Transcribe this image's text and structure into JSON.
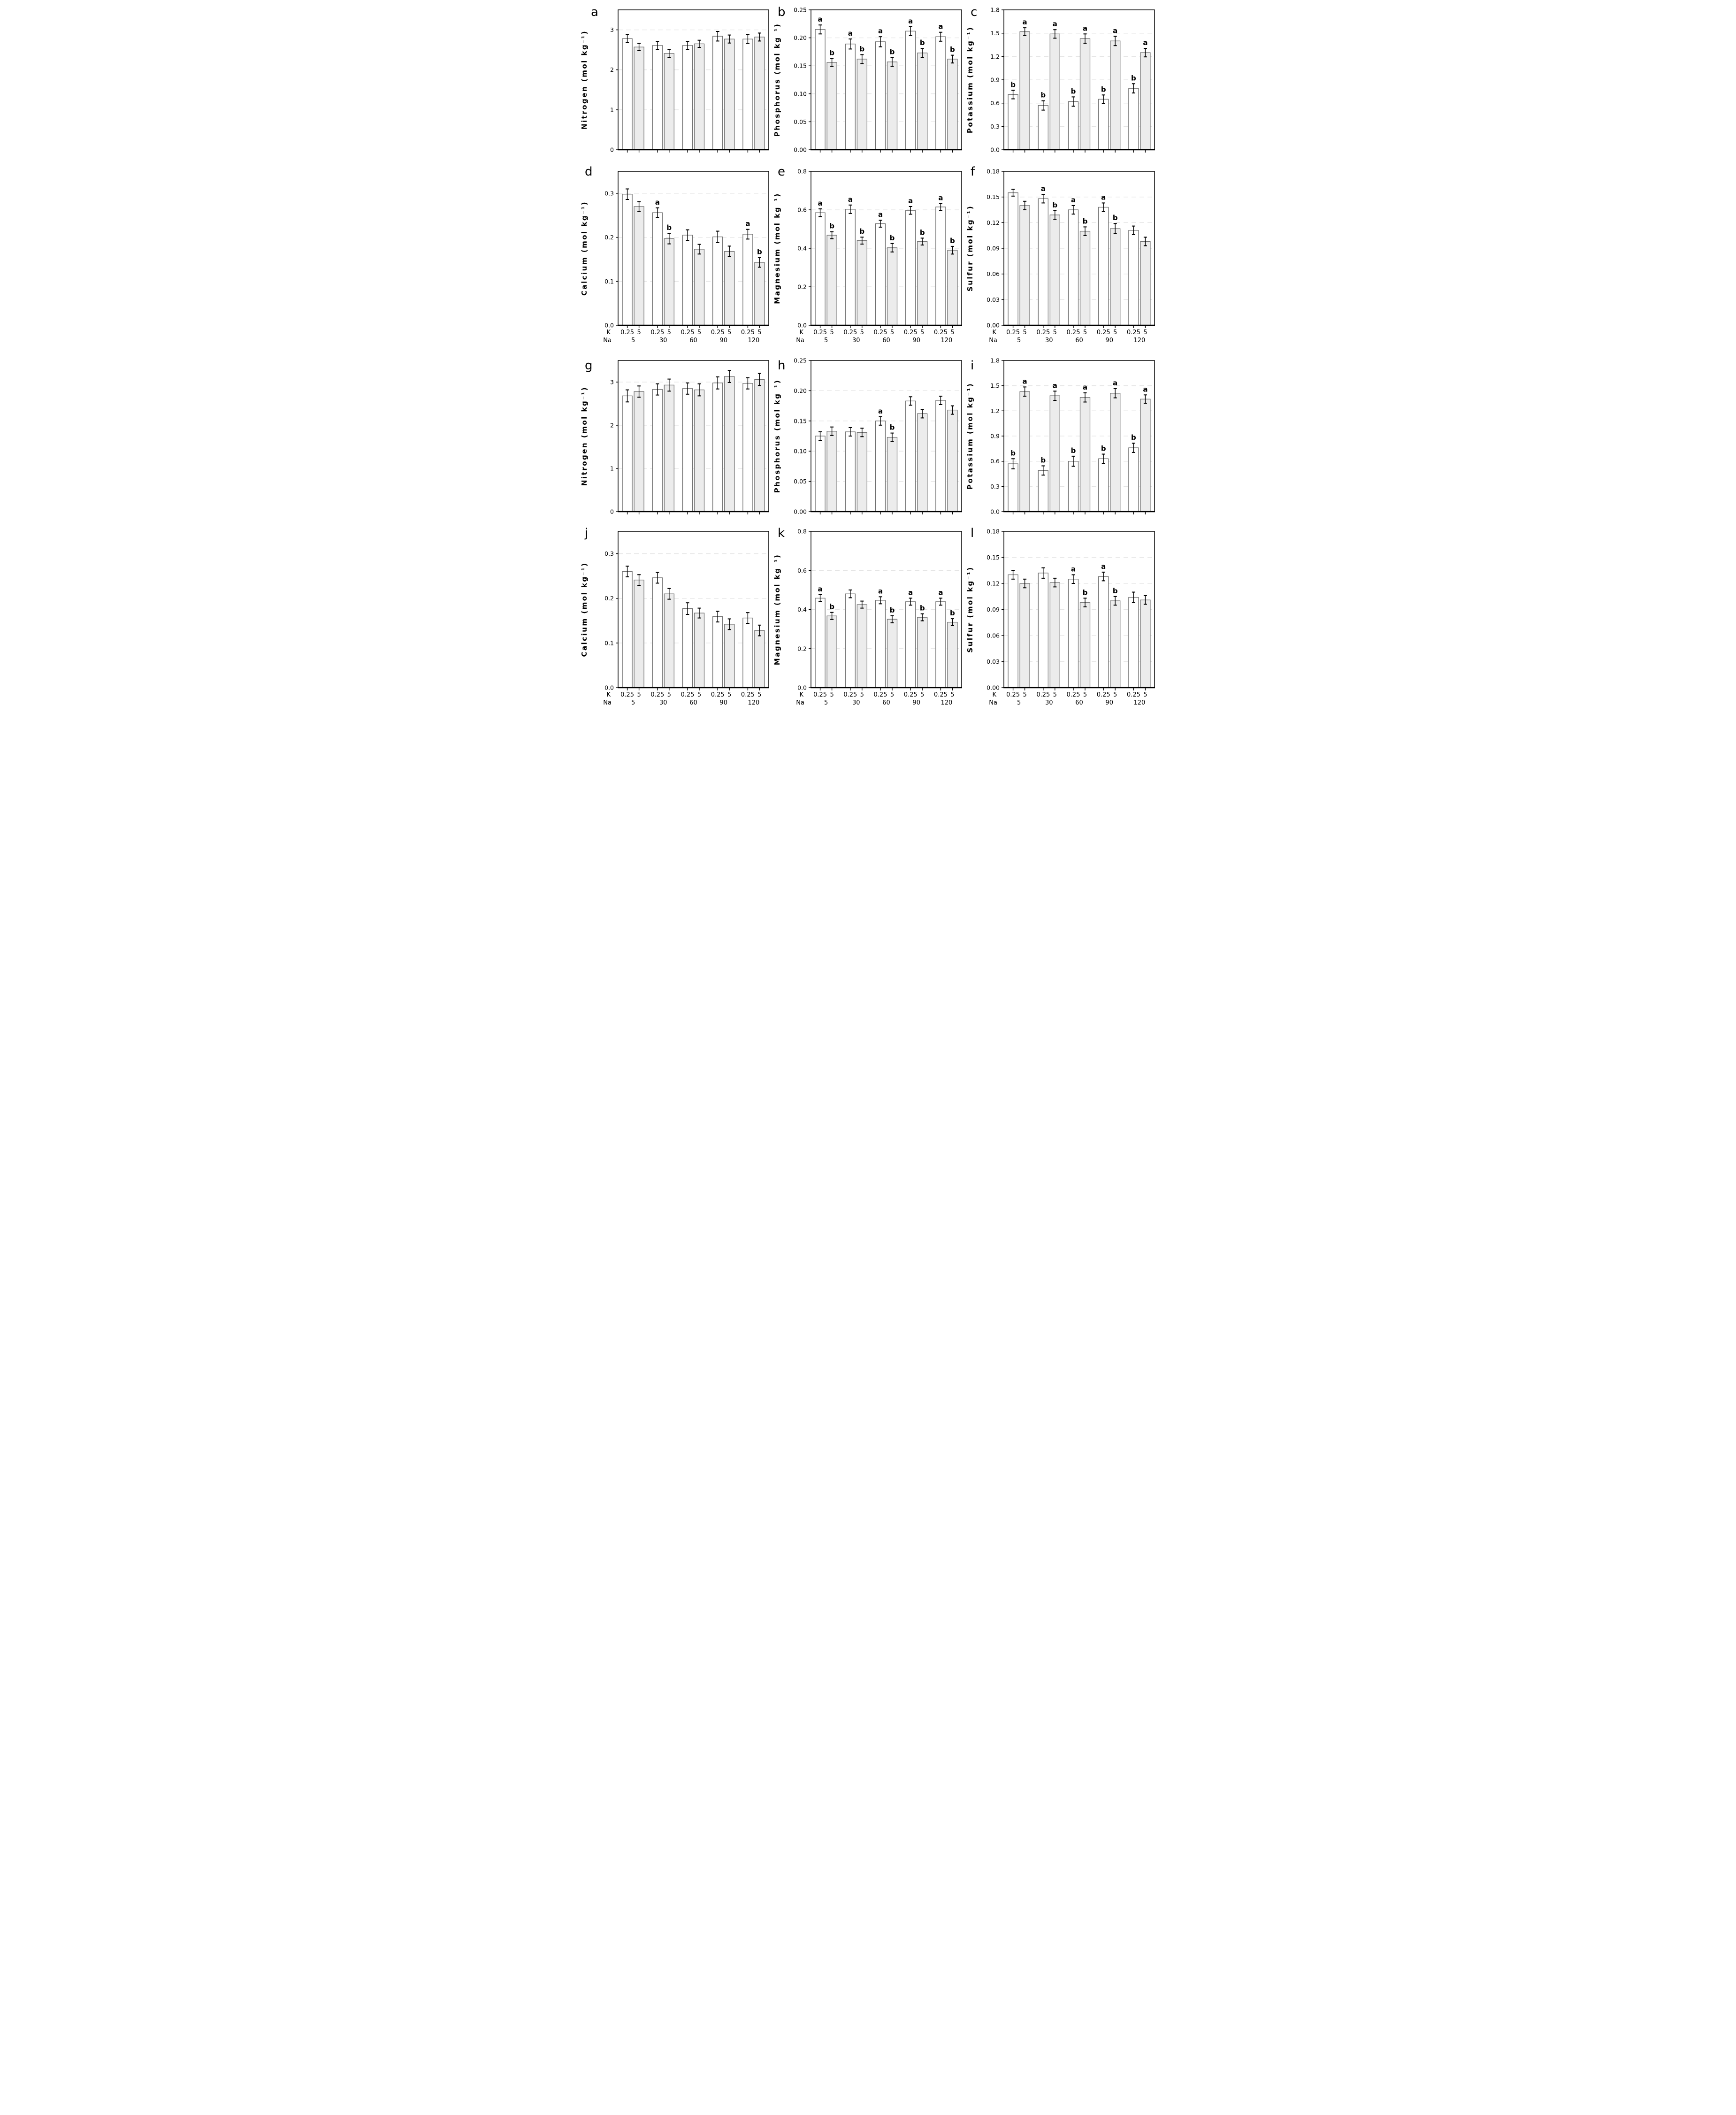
{
  "figure": {
    "background": "#ffffff",
    "x_axis": {
      "k_caption": "K",
      "na_caption": "Na",
      "k_values": [
        "0.25",
        "5"
      ],
      "na_values": [
        "5",
        "30",
        "60",
        "90",
        "120"
      ]
    },
    "series_names": [
      "K 0.25",
      "K 5"
    ],
    "colors": {
      "bar_white": "#ffffff",
      "bar_gray": "#ececec",
      "bar_border": "#6f6f6f",
      "axis": "#000000",
      "grid": "#e4e4e4",
      "error_bar": "#000000",
      "text": "#000000"
    }
  },
  "chart_data": [
    {
      "type": "bar",
      "panel": "a",
      "row": 0,
      "show_x_labels": false,
      "ylabel": "Nitrogen (mol kg⁻¹)",
      "ylim": [
        0,
        3.5
      ],
      "yticks": [
        0,
        1,
        2,
        3
      ],
      "ytick_labels": [
        "0",
        "1",
        "2",
        "3"
      ],
      "categories": [
        "5",
        "30",
        "60",
        "90",
        "120"
      ],
      "series": [
        {
          "name": "K 0.25",
          "fill": "white",
          "values": [
            2.78,
            2.61,
            2.61,
            2.84,
            2.77
          ],
          "errors": [
            0.1,
            0.1,
            0.1,
            0.12,
            0.11
          ],
          "letters": [
            "",
            "",
            "",
            "",
            ""
          ]
        },
        {
          "name": "K 5",
          "fill": "gray",
          "values": [
            2.57,
            2.41,
            2.65,
            2.77,
            2.82
          ],
          "errors": [
            0.09,
            0.1,
            0.09,
            0.1,
            0.1
          ],
          "letters": [
            "",
            "",
            "",
            "",
            ""
          ]
        }
      ]
    },
    {
      "type": "bar",
      "panel": "b",
      "row": 0,
      "show_x_labels": false,
      "ylabel": "Phosphorus (mol kg⁻¹)",
      "ylim": [
        0,
        0.25
      ],
      "yticks": [
        0,
        0.05,
        0.1,
        0.15,
        0.2,
        0.25
      ],
      "ytick_labels": [
        "0.00",
        "0.05",
        "0.10",
        "0.15",
        "0.20",
        "0.25"
      ],
      "categories": [
        "5",
        "30",
        "60",
        "90",
        "120"
      ],
      "series": [
        {
          "name": "K 0.25",
          "fill": "white",
          "values": [
            0.215,
            0.189,
            0.193,
            0.212,
            0.202
          ],
          "errors": [
            0.008,
            0.009,
            0.009,
            0.008,
            0.008
          ],
          "letters": [
            "a",
            "a",
            "a",
            "a",
            "a"
          ]
        },
        {
          "name": "K 5",
          "fill": "gray",
          "values": [
            0.156,
            0.162,
            0.157,
            0.173,
            0.162
          ],
          "errors": [
            0.007,
            0.008,
            0.008,
            0.008,
            0.007
          ],
          "letters": [
            "b",
            "b",
            "b",
            "b",
            "b"
          ]
        }
      ]
    },
    {
      "type": "bar",
      "panel": "c",
      "row": 0,
      "show_x_labels": false,
      "ylabel": "Potassium (mol kg⁻¹)",
      "ylim": [
        0,
        1.8
      ],
      "yticks": [
        0,
        0.3,
        0.6,
        0.9,
        1.2,
        1.5,
        1.8
      ],
      "ytick_labels": [
        "0.0",
        "0.3",
        "0.6",
        "0.9",
        "1.2",
        "1.5",
        "1.8"
      ],
      "categories": [
        "5",
        "30",
        "60",
        "90",
        "120"
      ],
      "series": [
        {
          "name": "K 0.25",
          "fill": "white",
          "values": [
            0.71,
            0.57,
            0.62,
            0.65,
            0.79
          ],
          "errors": [
            0.055,
            0.06,
            0.06,
            0.055,
            0.06
          ],
          "letters": [
            "b",
            "b",
            "b",
            "b",
            "b"
          ]
        },
        {
          "name": "K 5",
          "fill": "gray",
          "values": [
            1.52,
            1.49,
            1.43,
            1.4,
            1.25
          ],
          "errors": [
            0.05,
            0.055,
            0.06,
            0.06,
            0.055
          ],
          "letters": [
            "a",
            "a",
            "a",
            "a",
            "a"
          ]
        }
      ]
    },
    {
      "type": "bar",
      "panel": "d",
      "row": 1,
      "show_x_labels": true,
      "ylabel": "Calcium (mol kg⁻¹)",
      "ylim": [
        0,
        0.35
      ],
      "yticks": [
        0,
        0.1,
        0.2,
        0.3
      ],
      "ytick_labels": [
        "0.0",
        "0.1",
        "0.2",
        "0.3"
      ],
      "categories": [
        "5",
        "30",
        "60",
        "90",
        "120"
      ],
      "series": [
        {
          "name": "K 0.25",
          "fill": "white",
          "values": [
            0.298,
            0.256,
            0.205,
            0.201,
            0.207
          ],
          "errors": [
            0.012,
            0.011,
            0.012,
            0.013,
            0.011
          ],
          "letters": [
            "",
            "a",
            "",
            "",
            "a"
          ]
        },
        {
          "name": "K 5",
          "fill": "gray",
          "values": [
            0.27,
            0.197,
            0.173,
            0.168,
            0.143
          ],
          "errors": [
            0.011,
            0.012,
            0.011,
            0.012,
            0.011
          ],
          "letters": [
            "",
            "b",
            "",
            "",
            "b"
          ]
        }
      ]
    },
    {
      "type": "bar",
      "panel": "e",
      "row": 1,
      "show_x_labels": true,
      "ylabel": "Magnesium (mol kg⁻¹)",
      "ylim": [
        0,
        0.8
      ],
      "yticks": [
        0,
        0.2,
        0.4,
        0.6,
        0.8
      ],
      "ytick_labels": [
        "0.0",
        "0.2",
        "0.4",
        "0.6",
        "0.8"
      ],
      "categories": [
        "5",
        "30",
        "60",
        "90",
        "120"
      ],
      "series": [
        {
          "name": "K 0.25",
          "fill": "white",
          "values": [
            0.585,
            0.603,
            0.528,
            0.597,
            0.615
          ],
          "errors": [
            0.02,
            0.022,
            0.018,
            0.02,
            0.018
          ],
          "letters": [
            "a",
            "a",
            "a",
            "a",
            "a"
          ]
        },
        {
          "name": "K 5",
          "fill": "gray",
          "values": [
            0.468,
            0.44,
            0.403,
            0.435,
            0.39
          ],
          "errors": [
            0.018,
            0.018,
            0.022,
            0.018,
            0.02
          ],
          "letters": [
            "b",
            "b",
            "b",
            "b",
            "b"
          ]
        }
      ]
    },
    {
      "type": "bar",
      "panel": "f",
      "row": 1,
      "show_x_labels": true,
      "ylabel": "Sulfur (mol kg⁻¹)",
      "ylim": [
        0,
        0.18
      ],
      "yticks": [
        0,
        0.03,
        0.06,
        0.09,
        0.12,
        0.15,
        0.18
      ],
      "ytick_labels": [
        "0.00",
        "0.03",
        "0.06",
        "0.09",
        "0.12",
        "0.15",
        "0.18"
      ],
      "categories": [
        "5",
        "30",
        "60",
        "90",
        "120"
      ],
      "series": [
        {
          "name": "K 0.25",
          "fill": "white",
          "values": [
            0.155,
            0.148,
            0.135,
            0.138,
            0.111
          ],
          "errors": [
            0.004,
            0.005,
            0.005,
            0.005,
            0.005
          ],
          "letters": [
            "",
            "a",
            "a",
            "a",
            ""
          ]
        },
        {
          "name": "K 5",
          "fill": "gray",
          "values": [
            0.14,
            0.129,
            0.11,
            0.113,
            0.098
          ],
          "errors": [
            0.005,
            0.005,
            0.005,
            0.006,
            0.005
          ],
          "letters": [
            "",
            "b",
            "b",
            "b",
            ""
          ]
        }
      ]
    },
    {
      "type": "bar",
      "panel": "g",
      "row": 2,
      "show_x_labels": false,
      "ylabel": "Nitrogen (mol kg⁻¹)",
      "ylim": [
        0,
        3.5
      ],
      "yticks": [
        0,
        1,
        2,
        3
      ],
      "ytick_labels": [
        "0",
        "1",
        "2",
        "3"
      ],
      "categories": [
        "5",
        "30",
        "60",
        "90",
        "120"
      ],
      "series": [
        {
          "name": "K 0.25",
          "fill": "white",
          "values": [
            2.68,
            2.83,
            2.85,
            2.98,
            2.97
          ],
          "errors": [
            0.14,
            0.13,
            0.13,
            0.14,
            0.13
          ],
          "letters": [
            "",
            "",
            "",
            "",
            ""
          ]
        },
        {
          "name": "K 5",
          "fill": "gray",
          "values": [
            2.78,
            2.93,
            2.82,
            3.13,
            3.06
          ],
          "errors": [
            0.13,
            0.14,
            0.14,
            0.14,
            0.14
          ],
          "letters": [
            "",
            "",
            "",
            "",
            ""
          ]
        }
      ]
    },
    {
      "type": "bar",
      "panel": "h",
      "row": 2,
      "show_x_labels": false,
      "ylabel": "Phosphorus (mol kg⁻¹)",
      "ylim": [
        0,
        0.25
      ],
      "yticks": [
        0,
        0.05,
        0.1,
        0.15,
        0.2,
        0.25
      ],
      "ytick_labels": [
        "0.00",
        "0.05",
        "0.10",
        "0.15",
        "0.20",
        "0.25"
      ],
      "categories": [
        "5",
        "30",
        "60",
        "90",
        "120"
      ],
      "series": [
        {
          "name": "K 0.25",
          "fill": "white",
          "values": [
            0.125,
            0.132,
            0.15,
            0.183,
            0.184
          ],
          "errors": [
            0.007,
            0.007,
            0.007,
            0.007,
            0.007
          ],
          "letters": [
            "",
            "",
            "a",
            "",
            ""
          ]
        },
        {
          "name": "K 5",
          "fill": "gray",
          "values": [
            0.133,
            0.131,
            0.123,
            0.162,
            0.168
          ],
          "errors": [
            0.007,
            0.007,
            0.007,
            0.007,
            0.007
          ],
          "letters": [
            "",
            "",
            "b",
            "",
            ""
          ]
        }
      ]
    },
    {
      "type": "bar",
      "panel": "i",
      "row": 2,
      "show_x_labels": false,
      "ylabel": "Potassium (mol kg⁻¹)",
      "ylim": [
        0,
        1.8
      ],
      "yticks": [
        0,
        0.3,
        0.6,
        0.9,
        1.2,
        1.5,
        1.8
      ],
      "ytick_labels": [
        "0.0",
        "0.3",
        "0.6",
        "0.9",
        "1.2",
        "1.5",
        "1.8"
      ],
      "categories": [
        "5",
        "30",
        "60",
        "90",
        "120"
      ],
      "series": [
        {
          "name": "K 0.25",
          "fill": "white",
          "values": [
            0.57,
            0.49,
            0.6,
            0.63,
            0.76
          ],
          "errors": [
            0.06,
            0.055,
            0.06,
            0.055,
            0.055
          ],
          "letters": [
            "b",
            "b",
            "b",
            "b",
            "b"
          ]
        },
        {
          "name": "K 5",
          "fill": "gray",
          "values": [
            1.43,
            1.38,
            1.36,
            1.41,
            1.34
          ],
          "errors": [
            0.055,
            0.055,
            0.055,
            0.055,
            0.05
          ],
          "letters": [
            "a",
            "a",
            "a",
            "a",
            "a"
          ]
        }
      ]
    },
    {
      "type": "bar",
      "panel": "j",
      "row": 3,
      "show_x_labels": true,
      "ylabel": "Calcium (mol kg⁻¹)",
      "ylim": [
        0,
        0.35
      ],
      "yticks": [
        0,
        0.1,
        0.2,
        0.3
      ],
      "ytick_labels": [
        "0.0",
        "0.1",
        "0.2",
        "0.3"
      ],
      "categories": [
        "5",
        "30",
        "60",
        "90",
        "120"
      ],
      "series": [
        {
          "name": "K 0.25",
          "fill": "white",
          "values": [
            0.26,
            0.246,
            0.177,
            0.159,
            0.156
          ],
          "errors": [
            0.012,
            0.012,
            0.013,
            0.012,
            0.012
          ],
          "letters": [
            "",
            "",
            "",
            "",
            ""
          ]
        },
        {
          "name": "K 5",
          "fill": "gray",
          "values": [
            0.241,
            0.21,
            0.167,
            0.142,
            0.128
          ],
          "errors": [
            0.012,
            0.012,
            0.011,
            0.012,
            0.012
          ],
          "letters": [
            "",
            "",
            "",
            "",
            ""
          ]
        }
      ]
    },
    {
      "type": "bar",
      "panel": "k",
      "row": 3,
      "show_x_labels": true,
      "ylabel": "Magnesium (mol kg⁻¹)",
      "ylim": [
        0,
        0.8
      ],
      "yticks": [
        0,
        0.2,
        0.4,
        0.6,
        0.8
      ],
      "ytick_labels": [
        "0.0",
        "0.2",
        "0.4",
        "0.6",
        "0.8"
      ],
      "categories": [
        "5",
        "30",
        "60",
        "90",
        "120"
      ],
      "series": [
        {
          "name": "K 0.25",
          "fill": "white",
          "values": [
            0.458,
            0.48,
            0.447,
            0.44,
            0.44
          ],
          "errors": [
            0.018,
            0.02,
            0.018,
            0.018,
            0.018
          ],
          "letters": [
            "a",
            "",
            "a",
            "a",
            "a"
          ]
        },
        {
          "name": "K 5",
          "fill": "gray",
          "values": [
            0.367,
            0.425,
            0.35,
            0.36,
            0.335
          ],
          "errors": [
            0.018,
            0.018,
            0.018,
            0.018,
            0.018
          ],
          "letters": [
            "b",
            "",
            "b",
            "b",
            "b"
          ]
        }
      ]
    },
    {
      "type": "bar",
      "panel": "l",
      "row": 3,
      "show_x_labels": true,
      "ylabel": "Sulfur (mol kg⁻¹)",
      "ylim": [
        0,
        0.18
      ],
      "yticks": [
        0,
        0.03,
        0.06,
        0.09,
        0.12,
        0.15,
        0.18
      ],
      "ytick_labels": [
        "0.00",
        "0.03",
        "0.06",
        "0.09",
        "0.12",
        "0.15",
        "0.18"
      ],
      "categories": [
        "5",
        "30",
        "60",
        "90",
        "120"
      ],
      "series": [
        {
          "name": "K 0.25",
          "fill": "white",
          "values": [
            0.13,
            0.132,
            0.125,
            0.128,
            0.104
          ],
          "errors": [
            0.005,
            0.006,
            0.005,
            0.005,
            0.006
          ],
          "letters": [
            "",
            "",
            "a",
            "a",
            ""
          ]
        },
        {
          "name": "K 5",
          "fill": "gray",
          "values": [
            0.12,
            0.121,
            0.098,
            0.1,
            0.101
          ],
          "errors": [
            0.005,
            0.005,
            0.005,
            0.005,
            0.005
          ],
          "letters": [
            "",
            "",
            "b",
            "b",
            ""
          ]
        }
      ]
    }
  ]
}
